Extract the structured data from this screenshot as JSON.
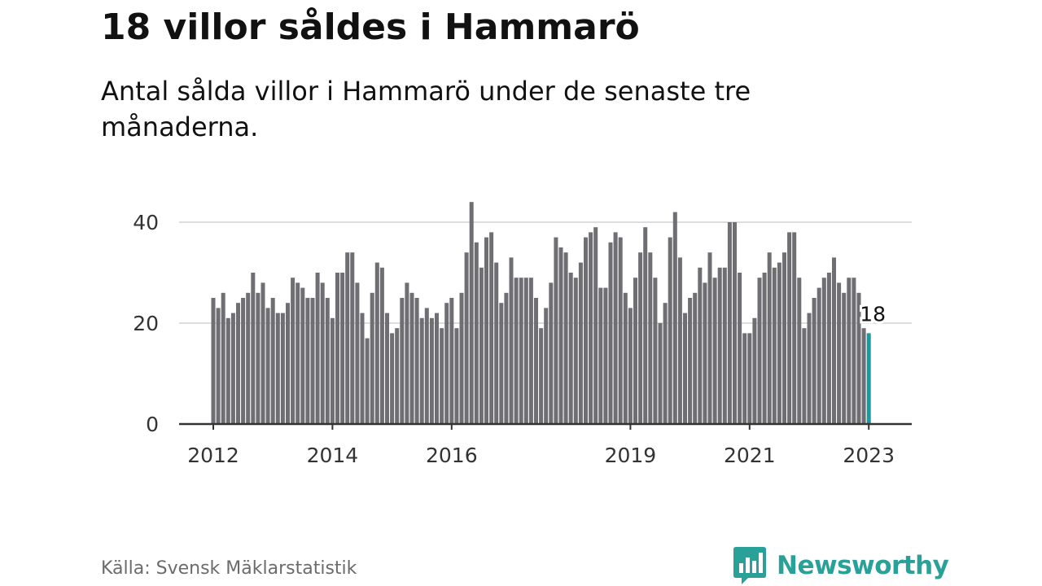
{
  "title": "18 villor såldes i Hammarö",
  "subtitle": "Antal sålda villor i Hammarö under de senaste tre månaderna.",
  "source": "Källa: Svensk Mäklarstatistik",
  "brand": {
    "name": "Newsworthy",
    "icon": "bar-chart-speech-bubble-icon",
    "color": "#2aa198"
  },
  "colors": {
    "bar": "#6e6e73",
    "highlight": "#1a9ba1",
    "grid": "#dddddd",
    "axis": "#333333",
    "text": "#333333"
  },
  "chart_data": {
    "type": "bar",
    "title": "18 villor såldes i Hammarö",
    "xlabel": "",
    "ylabel": "",
    "ylim": [
      0,
      45
    ],
    "yticks": [
      0,
      20,
      40
    ],
    "grid": true,
    "xticks": [
      {
        "label": "2012",
        "index": 0
      },
      {
        "label": "2014",
        "index": 24
      },
      {
        "label": "2016",
        "index": 48
      },
      {
        "label": "2019",
        "index": 84
      },
      {
        "label": "2021",
        "index": 108
      },
      {
        "label": "2023",
        "index": 132
      }
    ],
    "values": [
      25,
      23,
      26,
      21,
      22,
      24,
      25,
      26,
      30,
      26,
      28,
      23,
      25,
      22,
      22,
      24,
      29,
      28,
      27,
      25,
      25,
      30,
      28,
      25,
      21,
      30,
      30,
      34,
      34,
      28,
      22,
      17,
      26,
      32,
      31,
      22,
      18,
      19,
      25,
      28,
      26,
      25,
      21,
      23,
      21,
      22,
      19,
      24,
      25,
      19,
      26,
      34,
      44,
      36,
      31,
      37,
      38,
      32,
      24,
      26,
      33,
      29,
      29,
      29,
      29,
      25,
      19,
      23,
      28,
      37,
      35,
      34,
      30,
      29,
      32,
      37,
      38,
      39,
      27,
      27,
      36,
      38,
      37,
      26,
      23,
      29,
      34,
      39,
      34,
      29,
      20,
      24,
      37,
      42,
      33,
      22,
      25,
      26,
      31,
      28,
      34,
      29,
      31,
      31,
      40,
      40,
      30,
      18,
      18,
      21,
      29,
      30,
      34,
      31,
      32,
      34,
      38,
      38,
      29,
      19,
      22,
      25,
      27,
      29,
      30,
      33,
      28,
      26,
      29,
      29,
      26,
      19,
      18
    ],
    "highlight": {
      "index": 132,
      "value": 18,
      "label": "18"
    }
  }
}
